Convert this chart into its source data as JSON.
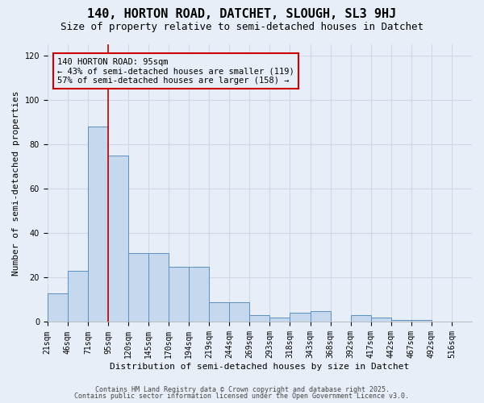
{
  "title": "140, HORTON ROAD, DATCHET, SLOUGH, SL3 9HJ",
  "subtitle": "Size of property relative to semi-detached houses in Datchet",
  "xlabel": "Distribution of semi-detached houses by size in Datchet",
  "ylabel": "Number of semi-detached properties",
  "bar_values": [
    13,
    23,
    88,
    75,
    31,
    31,
    25,
    25,
    9,
    9,
    3,
    2,
    4,
    5,
    0,
    3,
    2,
    1,
    1,
    0,
    0
  ],
  "categories": [
    "21sqm",
    "46sqm",
    "71sqm",
    "95sqm",
    "120sqm",
    "145sqm",
    "170sqm",
    "194sqm",
    "219sqm",
    "244sqm",
    "269sqm",
    "293sqm",
    "318sqm",
    "343sqm",
    "368sqm",
    "392sqm",
    "417sqm",
    "442sqm",
    "467sqm",
    "492sqm",
    "516sqm"
  ],
  "bar_color": "#c5d8ed",
  "bar_edge_color": "#5a8fc0",
  "grid_color": "#d0d8e8",
  "background_color": "#e8eef7",
  "vline_x": 3,
  "vline_color": "#cc0000",
  "annotation_text": "140 HORTON ROAD: 95sqm\n← 43% of semi-detached houses are smaller (119)\n57% of semi-detached houses are larger (158) →",
  "annotation_border_color": "#cc0000",
  "ylim": [
    0,
    125
  ],
  "yticks": [
    0,
    20,
    40,
    60,
    80,
    100,
    120
  ],
  "footer_line1": "Contains HM Land Registry data © Crown copyright and database right 2025.",
  "footer_line2": "Contains public sector information licensed under the Open Government Licence v3.0.",
  "title_fontsize": 11,
  "subtitle_fontsize": 9,
  "axis_label_fontsize": 8,
  "tick_fontsize": 7,
  "annotation_fontsize": 7.5,
  "footer_fontsize": 6
}
